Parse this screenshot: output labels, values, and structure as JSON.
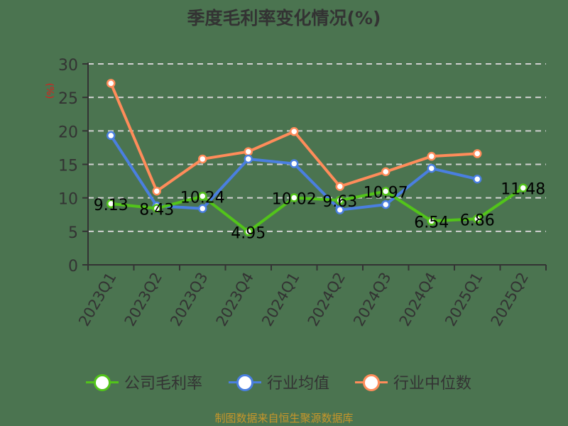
{
  "title": "季度毛利率变化情况(%)",
  "y_unit": "(%)",
  "footer": "制图数据来自恒生聚源数据库",
  "colors": {
    "background": "#4b7450",
    "company": "#52c41a",
    "industry_avg": "#4a7fe0",
    "industry_median": "#ff8c5a",
    "grid": "#d0d0d0",
    "axis": "#333333",
    "footer": "#c8962a",
    "unit": "#e21a1a"
  },
  "legend": [
    {
      "label": "公司毛利率",
      "color": "#52c41a"
    },
    {
      "label": "行业均值",
      "color": "#4a7fe0"
    },
    {
      "label": "行业中位数",
      "color": "#ff8c5a"
    }
  ],
  "chart_data": {
    "type": "line",
    "title": "季度毛利率变化情况(%)",
    "xlabel": "",
    "ylabel": "(%)",
    "ylim": [
      0,
      30
    ],
    "yticks": [
      0,
      5,
      10,
      15,
      20,
      25,
      30
    ],
    "grid": true,
    "legend_position": "bottom",
    "categories": [
      "2023Q1",
      "2023Q2",
      "2023Q3",
      "2023Q4",
      "2024Q1",
      "2024Q2",
      "2024Q3",
      "2024Q4",
      "2025Q1",
      "2025Q2"
    ],
    "series": [
      {
        "name": "公司毛利率",
        "values": [
          9.13,
          8.43,
          10.24,
          4.95,
          10.02,
          9.63,
          10.97,
          6.54,
          6.86,
          11.48
        ],
        "labels": true
      },
      {
        "name": "行业均值",
        "values": [
          19.3,
          8.8,
          8.4,
          15.8,
          15.1,
          8.2,
          9.0,
          14.4,
          12.8,
          null
        ],
        "labels": false
      },
      {
        "name": "行业中位数",
        "values": [
          27.1,
          11.0,
          15.8,
          16.9,
          19.9,
          11.7,
          13.9,
          16.2,
          16.6,
          null
        ],
        "labels": false
      }
    ]
  }
}
